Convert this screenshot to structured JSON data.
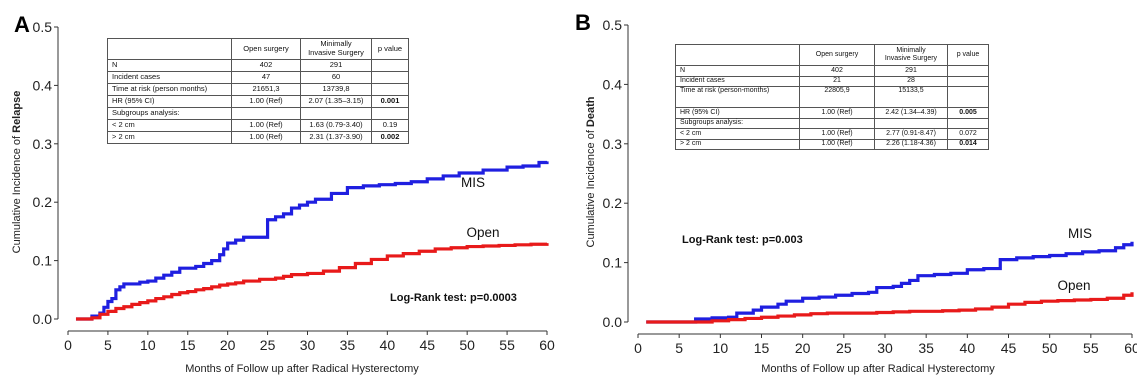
{
  "chart_data": [
    {
      "type": "line",
      "panel": "A",
      "ylabel_prefix": "Cumulative Incidence of ",
      "ylabel_bold": "Relapse",
      "xlabel": "Months of Follow up after Radical Hysterectomy",
      "xlim": [
        0,
        60
      ],
      "ylim": [
        0,
        0.5
      ],
      "xticks": [
        0,
        5,
        10,
        15,
        20,
        25,
        30,
        35,
        40,
        45,
        50,
        55,
        60
      ],
      "yticks": [
        "0.0",
        "0.1",
        "0.2",
        "0.3",
        "0.4",
        "0.5"
      ],
      "annotation": "Log-Rank test: p=0.0003",
      "series": [
        {
          "name": "MIS",
          "color": "#1f1fe0",
          "x": [
            1,
            2,
            3,
            4,
            4.5,
            5,
            5.5,
            6,
            6.5,
            7,
            8,
            9,
            10,
            11,
            12,
            13,
            14,
            16,
            17,
            18,
            19,
            19.5,
            20,
            21,
            22,
            24,
            25,
            26,
            27,
            28,
            29,
            30,
            31,
            33,
            35,
            37,
            39,
            41,
            43,
            45,
            47,
            49,
            52,
            55,
            57,
            59,
            60
          ],
          "y": [
            0,
            0,
            0.005,
            0.01,
            0.02,
            0.03,
            0.035,
            0.05,
            0.055,
            0.06,
            0.06,
            0.063,
            0.065,
            0.07,
            0.075,
            0.08,
            0.087,
            0.09,
            0.095,
            0.1,
            0.11,
            0.12,
            0.13,
            0.135,
            0.14,
            0.14,
            0.17,
            0.175,
            0.18,
            0.19,
            0.195,
            0.2,
            0.205,
            0.215,
            0.225,
            0.228,
            0.23,
            0.232,
            0.235,
            0.24,
            0.245,
            0.25,
            0.255,
            0.26,
            0.262,
            0.268,
            0.27
          ]
        },
        {
          "name": "Open",
          "color": "#e81a1a",
          "x": [
            1,
            2,
            3,
            4,
            5,
            6,
            7,
            8,
            9,
            10,
            11,
            12,
            13,
            14,
            15,
            16,
            17,
            18,
            19,
            20,
            21,
            22,
            24,
            26,
            27,
            28,
            30,
            32,
            34,
            36,
            38,
            40,
            42,
            44,
            46,
            48,
            50,
            52,
            54,
            56,
            58,
            60
          ],
          "y": [
            0,
            0,
            0.002,
            0.008,
            0.013,
            0.018,
            0.021,
            0.025,
            0.028,
            0.031,
            0.035,
            0.038,
            0.042,
            0.045,
            0.047,
            0.05,
            0.052,
            0.055,
            0.058,
            0.06,
            0.062,
            0.065,
            0.068,
            0.07,
            0.073,
            0.076,
            0.078,
            0.082,
            0.088,
            0.095,
            0.102,
            0.108,
            0.112,
            0.116,
            0.12,
            0.122,
            0.124,
            0.125,
            0.126,
            0.127,
            0.128,
            0.13
          ]
        }
      ]
    },
    {
      "type": "line",
      "panel": "B",
      "ylabel_prefix": "Cumulative Incidence of ",
      "ylabel_bold": "Death",
      "xlabel": "Months of Follow up after Radical Hysterectomy",
      "xlim": [
        0,
        60
      ],
      "ylim": [
        0,
        0.5
      ],
      "xticks": [
        0,
        5,
        10,
        15,
        20,
        25,
        30,
        35,
        40,
        45,
        50,
        55,
        60
      ],
      "yticks": [
        "0.0",
        "0.1",
        "0.2",
        "0.3",
        "0.4",
        "0.5"
      ],
      "annotation": "Log-Rank test: p=0.003",
      "series": [
        {
          "name": "MIS",
          "color": "#1f1fe0",
          "x": [
            1,
            3,
            5,
            7,
            9,
            11,
            12,
            14,
            15,
            17,
            18,
            20,
            22,
            24,
            26,
            28,
            29,
            31,
            32,
            33,
            34,
            36,
            38,
            40,
            42,
            44,
            46,
            48,
            50,
            52,
            54,
            56,
            58,
            59,
            60
          ],
          "y": [
            0,
            0,
            0,
            0.005,
            0.007,
            0.008,
            0.015,
            0.02,
            0.025,
            0.03,
            0.035,
            0.04,
            0.042,
            0.045,
            0.048,
            0.05,
            0.058,
            0.06,
            0.065,
            0.07,
            0.078,
            0.08,
            0.082,
            0.088,
            0.09,
            0.105,
            0.108,
            0.11,
            0.112,
            0.115,
            0.118,
            0.12,
            0.125,
            0.13,
            0.135
          ]
        },
        {
          "name": "Open",
          "color": "#e81a1a",
          "x": [
            1,
            3,
            5,
            7,
            9,
            11,
            13,
            15,
            17,
            19,
            21,
            23,
            25,
            27,
            29,
            31,
            33,
            35,
            37,
            39,
            41,
            43,
            45,
            47,
            49,
            51,
            53,
            55,
            57,
            59,
            60
          ],
          "y": [
            0,
            0,
            0,
            0,
            0.002,
            0.004,
            0.006,
            0.008,
            0.01,
            0.012,
            0.014,
            0.015,
            0.015,
            0.015,
            0.016,
            0.017,
            0.018,
            0.018,
            0.019,
            0.02,
            0.022,
            0.025,
            0.03,
            0.033,
            0.035,
            0.036,
            0.037,
            0.038,
            0.04,
            0.045,
            0.05
          ]
        }
      ]
    }
  ],
  "tables": {
    "a": {
      "headers": [
        "",
        "Open surgery",
        "Minimally\nInvasive Surgery",
        "p value"
      ],
      "rows": [
        [
          "N",
          "402",
          "291",
          ""
        ],
        [
          "Incident cases",
          "47",
          "60",
          ""
        ],
        [
          "Time at risk (person months)",
          "21651,3",
          "13739,8",
          ""
        ],
        [
          "HR (95% CI)",
          "1.00 (Ref)",
          "2.07 (1.35–3.15)",
          "0.001"
        ],
        [
          "Subgroups analysis:",
          "",
          "",
          ""
        ],
        [
          "< 2 cm",
          "1.00 (Ref)",
          "1.63 (0.79-3.40)",
          "0.19"
        ],
        [
          "> 2 cm",
          "1.00 (Ref)",
          "2.31 (1.37-3.90)",
          "0.002"
        ]
      ]
    },
    "b": {
      "headers": [
        "",
        "Open surgery",
        "Minimally\nInvasive Surgery",
        "p value"
      ],
      "rows": [
        [
          "N",
          "402",
          "291",
          ""
        ],
        [
          "Incident cases",
          "21",
          "28",
          ""
        ],
        [
          "Time at risk (person-months)",
          "22805,9",
          "15133,5",
          ""
        ],
        [
          "HR (95% CI)",
          "1.00 (Ref)",
          "2.42 (1.34–4.39)",
          "0.005"
        ],
        [
          "Subgroups analysis:",
          "",
          "",
          ""
        ],
        [
          "< 2 cm",
          "1.00 (Ref)",
          "2.77 (0.91-8.47)",
          "0.072"
        ],
        [
          "> 2 cm",
          "1.00 (Ref)",
          "2.26 (1.18-4.36)",
          "0.014"
        ]
      ]
    }
  }
}
